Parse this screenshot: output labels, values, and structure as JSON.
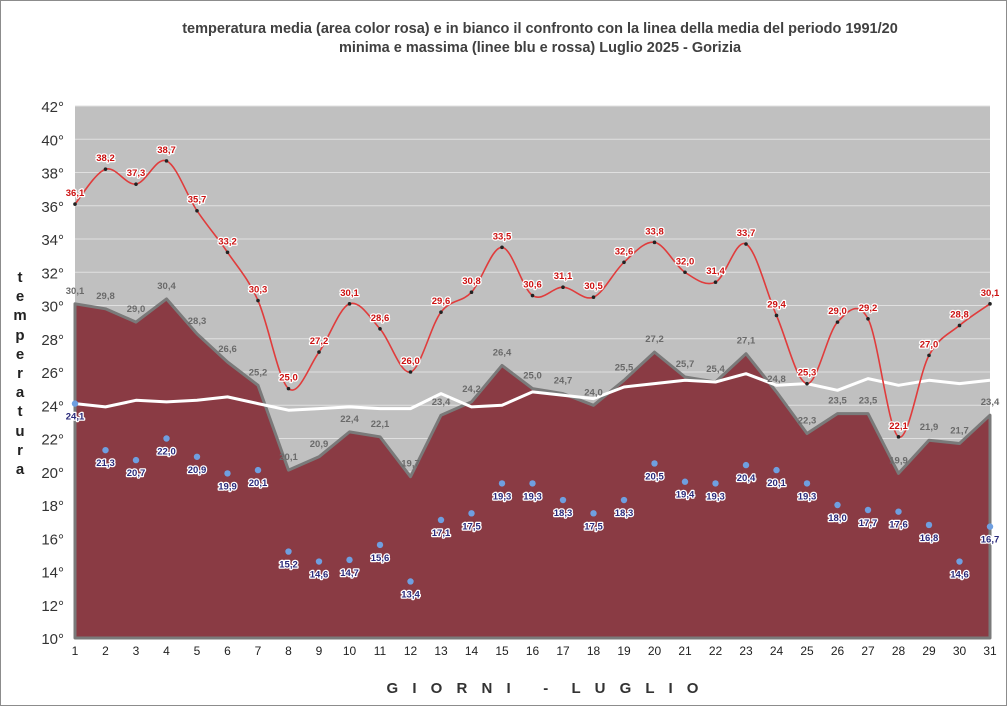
{
  "title": {
    "line1": "temperatura media (area color rosa) e in bianco il confronto con la linea della media del periodo 1991/20",
    "line2": "minima e massima (linee blu e rossa) Luglio 2025 - Gorizia"
  },
  "colors": {
    "plot_background": "#c0c0c0",
    "mean_area": "#8a3b44",
    "max_line": "#e03c3c",
    "min_points": "#6f9fe0",
    "normal_line": "#ffffff",
    "mean_labels": "#6a6a6a",
    "max_labels": "#cc1111",
    "min_labels": "#2a2a7a"
  },
  "chart_data": {
    "type": "area",
    "title": "temperatura media (area color rosa) e in bianco il confronto con la linea della media del periodo 1991/20 minima e massima (linee blu e rossa) Luglio 2025 - Gorizia",
    "xlabel": "G I O R N I   -  L U G L I O",
    "ylabel": "temperatura",
    "ylim": [
      10,
      42
    ],
    "x": [
      1,
      2,
      3,
      4,
      5,
      6,
      7,
      8,
      9,
      10,
      11,
      12,
      13,
      14,
      15,
      16,
      17,
      18,
      19,
      20,
      21,
      22,
      23,
      24,
      25,
      26,
      27,
      28,
      29,
      30,
      31
    ],
    "y_ticks": [
      "10°",
      "12°",
      "14°",
      "16°",
      "18°",
      "20°",
      "22°",
      "24°",
      "26°",
      "28°",
      "30°",
      "32°",
      "34°",
      "36°",
      "38°",
      "40°",
      "42°"
    ],
    "grid": true,
    "series": [
      {
        "key": "max",
        "labels": [
          "36,1",
          "38,2",
          "37,3",
          "38,7",
          "35,7",
          "33,2",
          "30,3",
          "25,0",
          "27,2",
          "30,1",
          "28,6",
          "26,0",
          "29,6",
          "30,8",
          "33,5",
          "30,6",
          "31,1",
          "30,5",
          "32,6",
          "33,8",
          "32,0",
          "31,4",
          "33,7",
          "29,4",
          "25,3",
          "29,0",
          "29,2",
          "22,1",
          "27,0",
          "28,8",
          "30,1"
        ],
        "values": [
          36.1,
          38.2,
          37.3,
          38.7,
          35.7,
          33.2,
          30.3,
          25.0,
          27.2,
          30.1,
          28.6,
          26.0,
          29.6,
          30.8,
          33.5,
          30.6,
          31.1,
          30.5,
          32.6,
          33.8,
          32.0,
          31.4,
          33.7,
          29.4,
          25.3,
          29.0,
          29.2,
          22.1,
          27.0,
          28.8,
          30.1
        ]
      },
      {
        "key": "mean",
        "labels": [
          "30,1",
          "29,8",
          "29,0",
          "30,4",
          "28,3",
          "26,6",
          "25,2",
          "20,1",
          "20,9",
          "22,4",
          "22,1",
          "19,7",
          "23,4",
          "24,2",
          "26,4",
          "25,0",
          "24,7",
          "24,0",
          "25,5",
          "27,2",
          "25,7",
          "25,4",
          "27,1",
          "24,8",
          "22,3",
          "23,5",
          "23,5",
          "19,9",
          "21,9",
          "21,7",
          "23,4"
        ],
        "values": [
          30.1,
          29.8,
          29.0,
          30.4,
          28.3,
          26.6,
          25.2,
          20.1,
          20.9,
          22.4,
          22.1,
          19.7,
          23.4,
          24.2,
          26.4,
          25.0,
          24.7,
          24.0,
          25.5,
          27.2,
          25.7,
          25.4,
          27.1,
          24.8,
          22.3,
          23.5,
          23.5,
          19.9,
          21.9,
          21.7,
          23.4
        ]
      },
      {
        "key": "min",
        "labels": [
          "24,1",
          "21,3",
          "20,7",
          "22,0",
          "20,9",
          "19,9",
          "20,1",
          "15,2",
          "14,6",
          "14,7",
          "15,6",
          "13,4",
          "17,1",
          "17,5",
          "19,3",
          "19,3",
          "18,3",
          "17,5",
          "18,3",
          "20,5",
          "19,4",
          "19,3",
          "20,4",
          "20,1",
          "19,3",
          "18,0",
          "17,7",
          "17,6",
          "16,8",
          "14,6",
          "16,7"
        ],
        "values": [
          24.1,
          21.3,
          20.7,
          22.0,
          20.9,
          19.9,
          20.1,
          15.2,
          14.6,
          14.7,
          15.6,
          13.4,
          17.1,
          17.5,
          19.3,
          19.3,
          18.3,
          17.5,
          18.3,
          20.5,
          19.4,
          19.3,
          20.4,
          20.1,
          19.3,
          18.0,
          17.7,
          17.6,
          16.8,
          14.6,
          16.7
        ]
      },
      {
        "key": "normal",
        "values": [
          24.1,
          23.9,
          24.3,
          24.2,
          24.3,
          24.5,
          24.1,
          23.7,
          23.8,
          23.9,
          23.8,
          23.8,
          24.7,
          23.9,
          24.0,
          24.8,
          24.6,
          24.4,
          25.1,
          25.3,
          25.5,
          25.4,
          25.9,
          25.2,
          25.3,
          24.9,
          25.6,
          25.2,
          25.5,
          25.3,
          25.5
        ]
      }
    ]
  }
}
